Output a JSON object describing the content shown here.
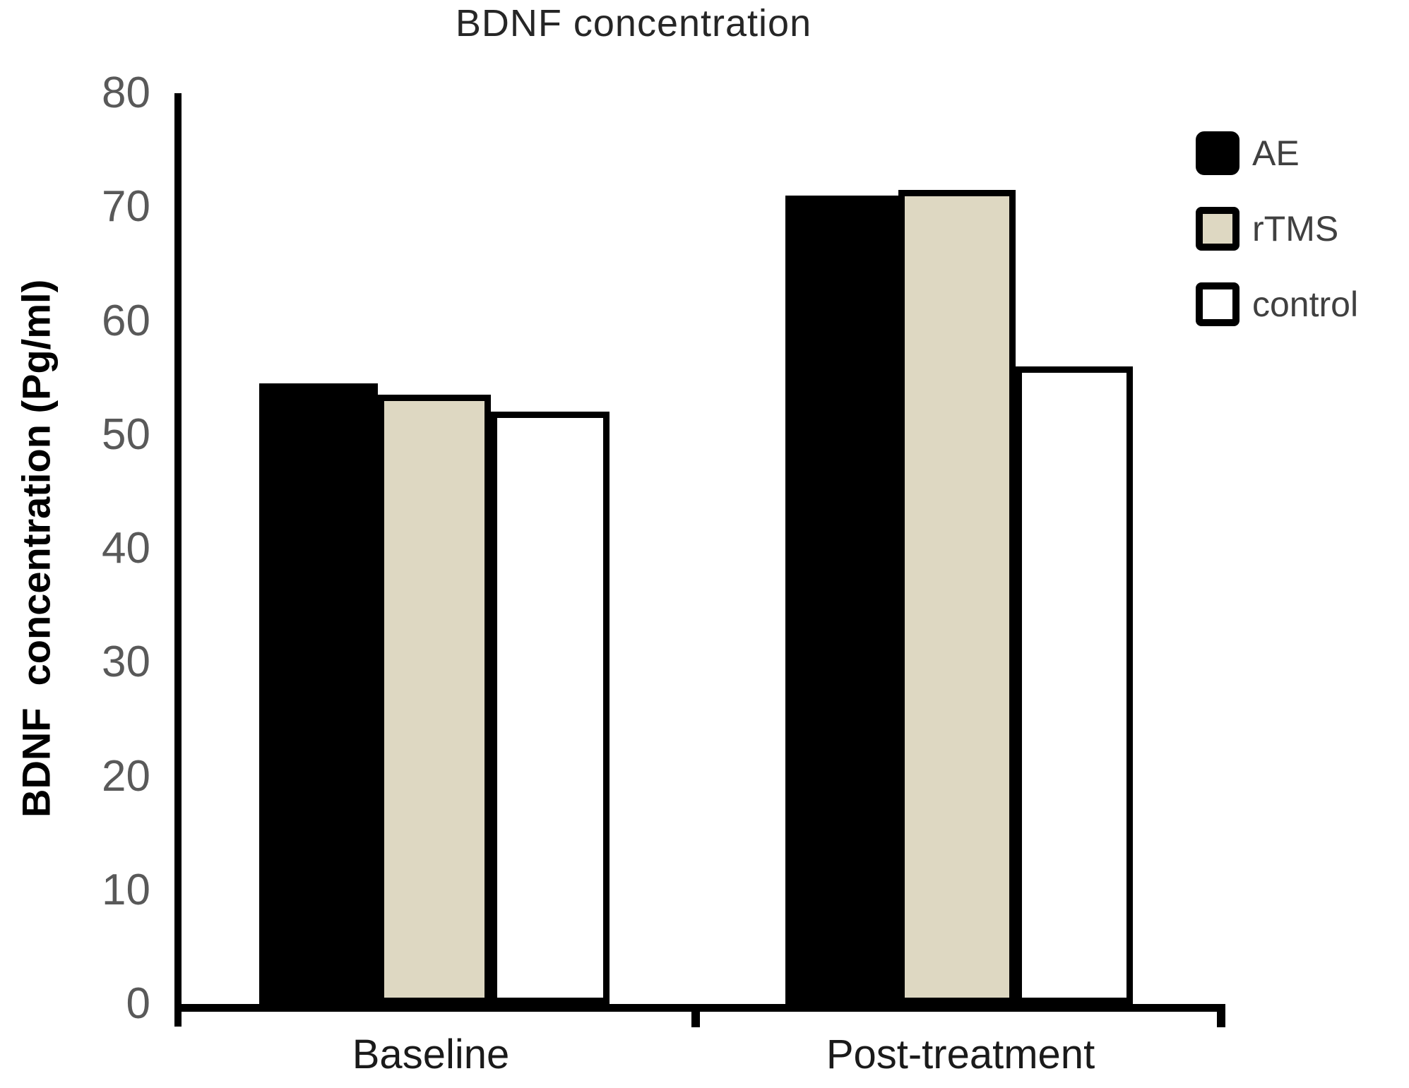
{
  "chart_data": {
    "type": "bar",
    "title": "BDNF concentration",
    "ylabel": "BDNF  concentration (Pg/ml)",
    "xlabel": "",
    "ylim": [
      0,
      80
    ],
    "y_ticks": [
      0,
      10,
      20,
      30,
      40,
      50,
      60,
      70,
      80
    ],
    "categories": [
      "Baseline",
      "Post-treatment"
    ],
    "series": [
      {
        "name": "AE",
        "values": [
          54.5,
          71
        ],
        "fill": "#000000",
        "border": "#000000"
      },
      {
        "name": "rTMS",
        "values": [
          53.5,
          71.5
        ],
        "fill": "#ded8c2",
        "border": "#000000"
      },
      {
        "name": "control",
        "values": [
          52,
          56
        ],
        "fill": "#ffffff",
        "border": "#000000"
      }
    ],
    "legend_position": "top-right",
    "grid": false,
    "axis_color": "#000000",
    "tick_label_color": "#595959"
  }
}
